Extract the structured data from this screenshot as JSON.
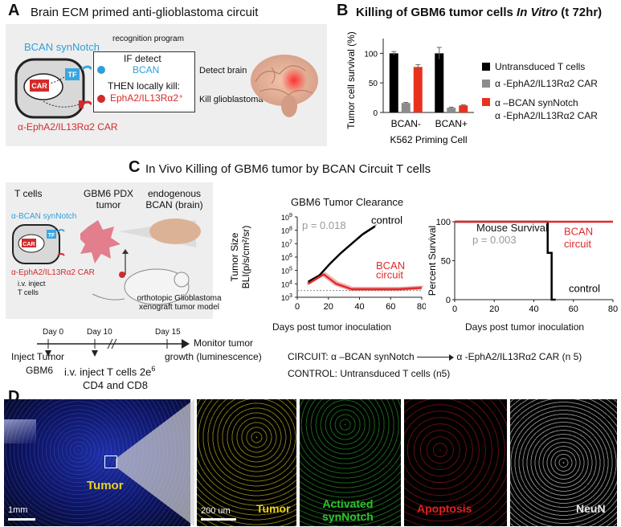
{
  "panelA": {
    "letter": "A",
    "title": "Brain ECM primed anti-glioblastoma circuit",
    "synnotch_label": "BCAN synNotch",
    "tf_label": "TF",
    "car_label": "CAR",
    "car_name": "α-EphA2/IL13Rα2 CAR",
    "recognition": "recognition program",
    "if_detect": "IF detect",
    "bcan": "BCAN",
    "then_kill": "THEN locally kill:",
    "targets": "EphA2/IL13Rα2⁺",
    "detect_brain": "Detect brain",
    "kill_gbm": "Kill glioblastoma"
  },
  "panelB": {
    "letter": "B",
    "title_prefix": "Killing of GBM6 tumor cells ",
    "title_italic": "In Vitro",
    "title_suffix": " (t 72hr)",
    "legend": [
      {
        "label": "Untransduced T cells",
        "color": "#000000"
      },
      {
        "label": "α -EphA2/IL13Rα2 CAR",
        "color": "#8c8c8c"
      },
      {
        "label": "α –BCAN synNotch",
        "label2": "α -EphA2/IL13Rα2 CAR",
        "color": "#e8321e"
      }
    ]
  },
  "panelC": {
    "letter": "C",
    "title": "In Vivo Killing of GBM6 tumor by BCAN Circuit T cells",
    "t_cells": "T cells",
    "pdx": "GBM6 PDX",
    "pdx2": "tumor",
    "endog": "endogenous",
    "endog2": "BCAN (brain)",
    "synnotch": "α-BCAN synNotch",
    "tf": "TF",
    "car": "CAR",
    "car_name": "α-EphA2/IL13Rα2 CAR",
    "iv": "i.v. inject",
    "iv2": "T cells",
    "ortho": "orthotopic Glioblastoma",
    "ortho2": "xenograft tumor model",
    "timeline": {
      "days": [
        "Day 0",
        "Day 10",
        "Day 15"
      ],
      "inject_tumor": "Inject Tumor",
      "gbm6": "GBM6",
      "iv_t": "i.v. inject T cells 2e",
      "iv_t_sup": "6",
      "cd": "CD4 and CD8",
      "monitor": "Monitor tumor",
      "monitor2": "growth (luminescence)"
    },
    "circuit_line_a": "CIRCUIT: α –BCAN synNotch",
    "circuit_line_b": "α -EphA2/IL13Rα2 CAR (n 5)",
    "control_line": "CONTROL: Untransduced T cells (n5)"
  },
  "panelD": {
    "letter": "D",
    "tumor": "Tumor",
    "scale1": "1mm",
    "scale2": "200 um",
    "panels": [
      {
        "label": "Tumor",
        "color": "#e8d21e"
      },
      {
        "label": "Activated",
        "label2": "synNotch",
        "color": "#2ec22e"
      },
      {
        "label": "Apoptosis",
        "color": "#e02020"
      },
      {
        "label": "NeuN",
        "color": "#e8e8e8"
      }
    ]
  },
  "chart_data": [
    {
      "type": "bar",
      "ylabel": "Tumor cell survival (%)",
      "xlabel": "K562 Priming Cell",
      "categories": [
        "BCAN-",
        "BCAN+"
      ],
      "ylim": [
        0,
        125
      ],
      "yticks": [
        0,
        50,
        100
      ],
      "series": [
        {
          "name": "Untransduced T cells",
          "values": [
            100,
            100
          ],
          "errors": [
            3,
            10
          ],
          "color": "#000000"
        },
        {
          "name": "α -EphA2/IL13Rα2 CAR",
          "values": [
            16,
            8
          ],
          "errors": [
            1,
            1
          ],
          "color": "#8c8c8c"
        },
        {
          "name": "α –BCAN synNotch α -EphA2/IL13Rα2 CAR",
          "values": [
            77,
            12
          ],
          "errors": [
            4,
            1
          ],
          "color": "#e8321e"
        }
      ]
    },
    {
      "type": "line",
      "title": "GBM6 Tumor Clearance",
      "ylabel": "Tumor Size",
      "ylabel2": "BLI(p/s/cm²/sr)",
      "xlabel": "Days post tumor inoculation",
      "xlim": [
        0,
        80
      ],
      "xticks": [
        0,
        20,
        40,
        60,
        80
      ],
      "ylim_log10": [
        3,
        9
      ],
      "ytick_exponents": [
        3,
        4,
        5,
        6,
        7,
        8,
        9
      ],
      "annotation": "p = 0.018",
      "series": [
        {
          "name": "control",
          "color": "#000000",
          "points": [
            [
              7,
              4.15
            ],
            [
              14,
              4.6
            ],
            [
              21,
              5.5
            ],
            [
              28,
              6.3
            ],
            [
              35,
              7.0
            ],
            [
              42,
              7.7
            ],
            [
              50,
              8.3
            ]
          ]
        },
        {
          "name": "BCAN circuit",
          "color": "#e02a2a",
          "points": [
            [
              7,
              4.0
            ],
            [
              17,
              4.7
            ],
            [
              25,
              4.0
            ],
            [
              35,
              3.6
            ],
            [
              50,
              3.6
            ],
            [
              65,
              3.6
            ],
            [
              80,
              3.7
            ]
          ]
        }
      ]
    },
    {
      "type": "line",
      "title": "Mouse Survival",
      "ylabel": "Percent Survival",
      "xlabel": "Days post tumor inoculation",
      "xlim": [
        0,
        80
      ],
      "xticks": [
        0,
        20,
        40,
        60,
        80
      ],
      "ylim": [
        0,
        100
      ],
      "yticks": [
        0,
        50,
        100
      ],
      "annotation": "p = 0.003",
      "series": [
        {
          "name": "BCAN circuit",
          "color": "#e02a2a",
          "points": [
            [
              0,
              100
            ],
            [
              80,
              100
            ]
          ]
        },
        {
          "name": "control",
          "color": "#000000",
          "points": [
            [
              0,
              100
            ],
            [
              47,
              100
            ],
            [
              47,
              60
            ],
            [
              49,
              60
            ],
            [
              49,
              0
            ],
            [
              51,
              0
            ]
          ]
        }
      ]
    }
  ]
}
